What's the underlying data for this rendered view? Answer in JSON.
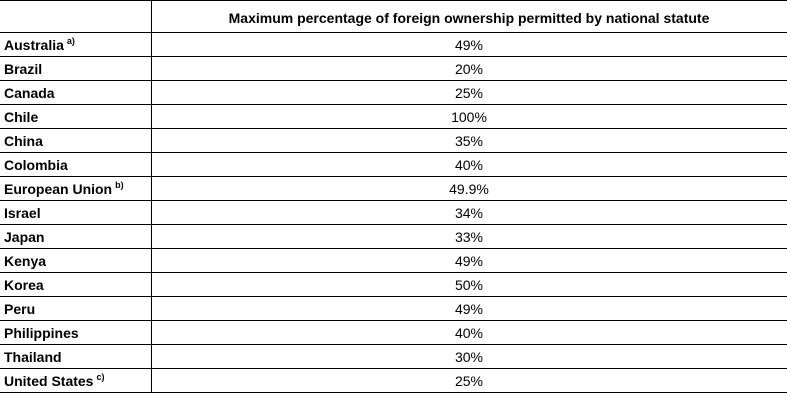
{
  "table": {
    "header": {
      "blank": "",
      "column_title": "Maximum percentage of foreign ownership permitted by national statute"
    },
    "rows": [
      {
        "country": "Australia",
        "note": "a)",
        "percentage": "49%"
      },
      {
        "country": "Brazil",
        "note": "",
        "percentage": "20%"
      },
      {
        "country": "Canada",
        "note": "",
        "percentage": "25%"
      },
      {
        "country": "Chile",
        "note": "",
        "percentage": "100%"
      },
      {
        "country": "China",
        "note": "",
        "percentage": "35%"
      },
      {
        "country": "Colombia",
        "note": "",
        "percentage": "40%"
      },
      {
        "country": "European Union",
        "note": "b)",
        "percentage": "49.9%"
      },
      {
        "country": "Israel",
        "note": "",
        "percentage": "34%"
      },
      {
        "country": "Japan",
        "note": "",
        "percentage": "33%"
      },
      {
        "country": "Kenya",
        "note": "",
        "percentage": "49%"
      },
      {
        "country": "Korea",
        "note": "",
        "percentage": "50%"
      },
      {
        "country": "Peru",
        "note": "",
        "percentage": "49%"
      },
      {
        "country": "Philippines",
        "note": "",
        "percentage": "40%"
      },
      {
        "country": "Thailand",
        "note": "",
        "percentage": "30%"
      },
      {
        "country": "United States",
        "note": "c)",
        "percentage": "25%"
      }
    ]
  }
}
